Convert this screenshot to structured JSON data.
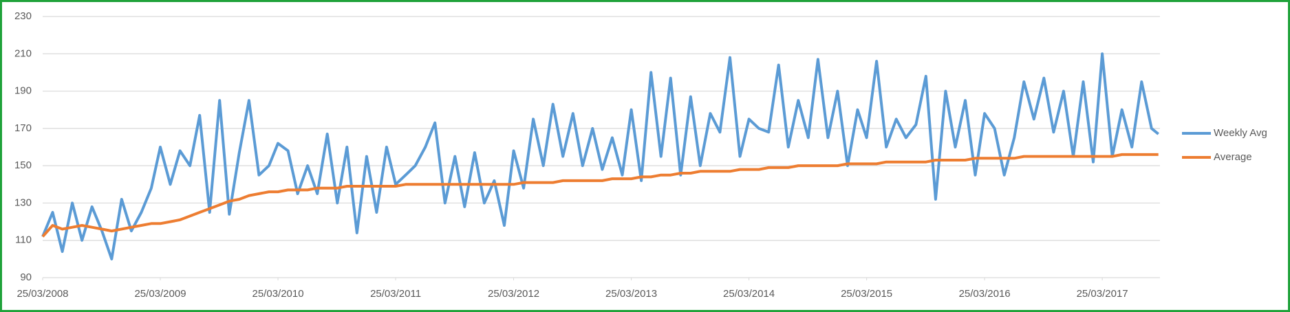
{
  "chart_data": {
    "type": "line",
    "x": [
      "2008-03-25",
      "2008-04-25",
      "2008-05-25",
      "2008-06-25",
      "2008-07-25",
      "2008-08-25",
      "2008-09-25",
      "2008-10-25",
      "2008-11-25",
      "2008-12-25",
      "2009-01-25",
      "2009-02-25",
      "2009-03-25",
      "2009-04-25",
      "2009-05-25",
      "2009-06-25",
      "2009-07-25",
      "2009-08-25",
      "2009-09-25",
      "2009-10-25",
      "2009-11-25",
      "2009-12-25",
      "2010-01-25",
      "2010-02-25",
      "2010-03-25",
      "2010-04-25",
      "2010-05-25",
      "2010-06-25",
      "2010-07-25",
      "2010-08-25",
      "2010-09-25",
      "2010-10-25",
      "2010-11-25",
      "2010-12-25",
      "2011-01-25",
      "2011-02-25",
      "2011-03-25",
      "2011-04-25",
      "2011-05-25",
      "2011-06-25",
      "2011-07-25",
      "2011-08-25",
      "2011-09-25",
      "2011-10-25",
      "2011-11-25",
      "2011-12-25",
      "2012-01-25",
      "2012-02-25",
      "2012-03-25",
      "2012-04-25",
      "2012-05-25",
      "2012-06-25",
      "2012-07-25",
      "2012-08-25",
      "2012-09-25",
      "2012-10-25",
      "2012-11-25",
      "2012-12-25",
      "2013-01-25",
      "2013-02-25",
      "2013-03-25",
      "2013-04-25",
      "2013-05-25",
      "2013-06-25",
      "2013-07-25",
      "2013-08-25",
      "2013-09-25",
      "2013-10-25",
      "2013-11-25",
      "2013-12-25",
      "2014-01-25",
      "2014-02-25",
      "2014-03-25",
      "2014-04-25",
      "2014-05-25",
      "2014-06-25",
      "2014-07-25",
      "2014-08-25",
      "2014-09-25",
      "2014-10-25",
      "2014-11-25",
      "2014-12-25",
      "2015-01-25",
      "2015-02-25",
      "2015-03-25",
      "2015-04-25",
      "2015-05-25",
      "2015-06-25",
      "2015-07-25",
      "2015-08-25",
      "2015-09-25",
      "2015-10-25",
      "2015-11-25",
      "2015-12-25",
      "2016-01-25",
      "2016-02-25",
      "2016-03-25",
      "2016-04-25",
      "2016-05-25",
      "2016-06-25",
      "2016-07-25",
      "2016-08-25",
      "2016-09-25",
      "2016-10-25",
      "2016-11-25",
      "2016-12-25",
      "2017-01-25",
      "2017-02-25",
      "2017-03-25",
      "2017-04-25",
      "2017-05-25",
      "2017-06-25",
      "2017-07-25",
      "2017-08-25",
      "2017-09-15"
    ],
    "series": [
      {
        "name": "Weekly Avg",
        "color": "#5b9bd5",
        "values": [
          112,
          125,
          104,
          130,
          110,
          128,
          115,
          100,
          132,
          115,
          125,
          138,
          160,
          140,
          158,
          150,
          177,
          125,
          185,
          124,
          157,
          185,
          145,
          150,
          162,
          158,
          135,
          150,
          135,
          167,
          130,
          160,
          114,
          155,
          125,
          160,
          140,
          145,
          150,
          160,
          173,
          130,
          155,
          128,
          157,
          130,
          142,
          118,
          158,
          138,
          175,
          150,
          183,
          155,
          178,
          150,
          170,
          148,
          165,
          145,
          180,
          142,
          200,
          155,
          197,
          145,
          187,
          150,
          178,
          168,
          208,
          155,
          175,
          170,
          168,
          204,
          160,
          185,
          165,
          207,
          165,
          190,
          150,
          180,
          165,
          206,
          160,
          175,
          165,
          172,
          198,
          132,
          190,
          160,
          185,
          145,
          178,
          170,
          145,
          165,
          195,
          175,
          197,
          168,
          190,
          155,
          195,
          152,
          210,
          155,
          180,
          160,
          195,
          170,
          167
        ]
      },
      {
        "name": "Average",
        "color": "#ed7d31",
        "values": [
          112,
          118,
          116,
          117,
          118,
          117,
          116,
          115,
          116,
          117,
          118,
          119,
          119,
          120,
          121,
          123,
          125,
          127,
          129,
          131,
          132,
          134,
          135,
          136,
          136,
          137,
          137,
          137,
          138,
          138,
          138,
          139,
          139,
          139,
          139,
          139,
          139,
          140,
          140,
          140,
          140,
          140,
          140,
          140,
          140,
          140,
          140,
          140,
          140,
          141,
          141,
          141,
          141,
          142,
          142,
          142,
          142,
          142,
          143,
          143,
          143,
          144,
          144,
          145,
          145,
          146,
          146,
          147,
          147,
          147,
          147,
          148,
          148,
          148,
          149,
          149,
          149,
          150,
          150,
          150,
          150,
          150,
          151,
          151,
          151,
          151,
          152,
          152,
          152,
          152,
          152,
          153,
          153,
          153,
          153,
          154,
          154,
          154,
          154,
          154,
          155,
          155,
          155,
          155,
          155,
          155,
          155,
          155,
          155,
          155,
          156,
          156,
          156,
          156,
          156
        ]
      }
    ],
    "xlim": [
      "2008-03-25",
      "2017-09-20"
    ],
    "xticks": [
      {
        "value": "2008-03-25",
        "label": "25/03/2008"
      },
      {
        "value": "2009-03-25",
        "label": "25/03/2009"
      },
      {
        "value": "2010-03-25",
        "label": "25/03/2010"
      },
      {
        "value": "2011-03-25",
        "label": "25/03/2011"
      },
      {
        "value": "2012-03-25",
        "label": "25/03/2012"
      },
      {
        "value": "2013-03-25",
        "label": "25/03/2013"
      },
      {
        "value": "2014-03-25",
        "label": "25/03/2014"
      },
      {
        "value": "2015-03-25",
        "label": "25/03/2015"
      },
      {
        "value": "2016-03-25",
        "label": "25/03/2016"
      },
      {
        "value": "2017-03-25",
        "label": "25/03/2017"
      }
    ],
    "ylim": [
      90,
      230
    ],
    "yticks": [
      90,
      110,
      130,
      150,
      170,
      190,
      210,
      230
    ],
    "grid": true,
    "legend": "right"
  }
}
